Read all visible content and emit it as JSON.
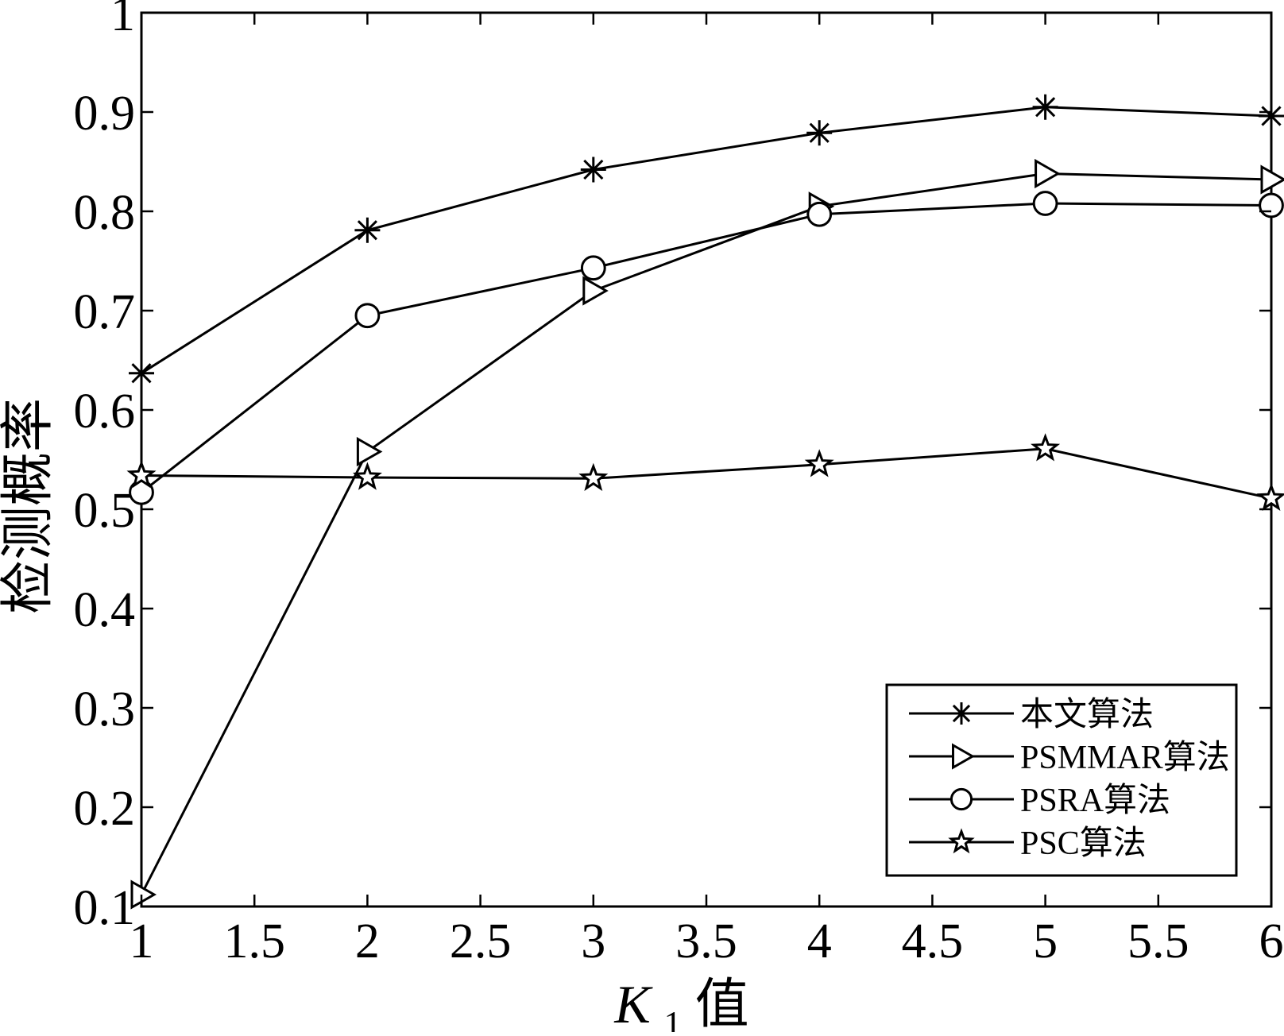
{
  "chart_data": {
    "type": "line",
    "title": "",
    "xlabel": {
      "main": "K",
      "subscript": "1",
      "suffix": "值"
    },
    "ylabel": "检测概率",
    "xlim": [
      1,
      6
    ],
    "ylim": [
      0.1,
      1.0
    ],
    "xticks": [
      "1",
      "1.5",
      "2",
      "2.5",
      "3",
      "3.5",
      "4",
      "4.5",
      "5",
      "5.5",
      "6"
    ],
    "yticks": [
      "0.1",
      "0.2",
      "0.3",
      "0.4",
      "0.5",
      "0.6",
      "0.7",
      "0.8",
      "0.9",
      "1"
    ],
    "grid": false,
    "legend_position": "bottom-right",
    "x": [
      1,
      2,
      3,
      4,
      5,
      6
    ],
    "series": [
      {
        "name": "本文算法",
        "marker": "asterisk",
        "values": [
          0.637,
          0.781,
          0.842,
          0.879,
          0.905,
          0.896
        ]
      },
      {
        "name": "PSMMAR算法",
        "marker": "triangle-right",
        "values": [
          0.112,
          0.558,
          0.72,
          0.805,
          0.838,
          0.832
        ]
      },
      {
        "name": "PSRA算法",
        "marker": "circle",
        "values": [
          0.517,
          0.695,
          0.743,
          0.797,
          0.808,
          0.806
        ]
      },
      {
        "name": "PSC算法",
        "marker": "pentagram",
        "values": [
          0.534,
          0.532,
          0.531,
          0.545,
          0.561,
          0.511
        ]
      }
    ],
    "colors": {
      "line": "#000000",
      "background": "#ffffff"
    }
  }
}
